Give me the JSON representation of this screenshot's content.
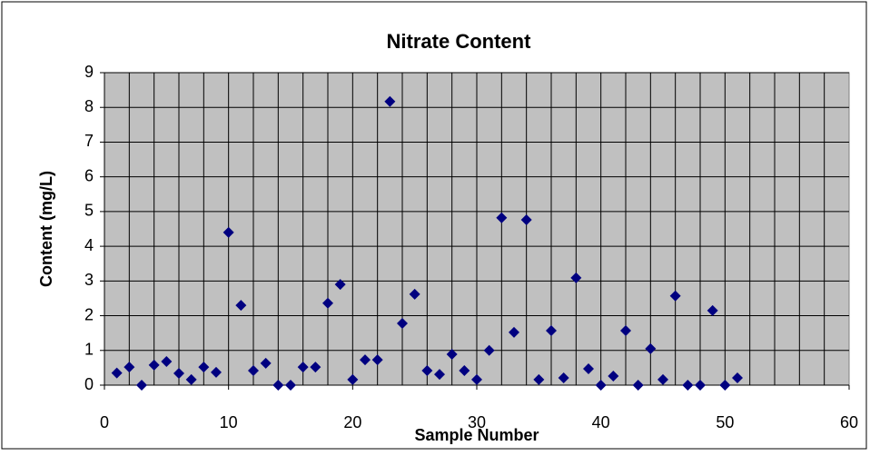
{
  "chart_data": {
    "type": "scatter",
    "title": "Nitrate Content",
    "x_label": "Sample Number",
    "y_label": "Content (mg/L)",
    "series": [
      {
        "name": "Nitrate",
        "color": "#000080",
        "x": [
          1,
          2,
          3,
          4,
          5,
          6,
          7,
          8,
          9,
          10,
          11,
          12,
          13,
          14,
          15,
          16,
          17,
          18,
          19,
          20,
          21,
          22,
          23,
          24,
          25,
          26,
          27,
          28,
          29,
          30,
          31,
          32,
          33,
          34,
          35,
          36,
          37,
          38,
          39,
          40,
          41,
          42,
          43,
          44,
          45,
          46,
          47,
          48,
          49,
          50,
          51
        ],
        "values": [
          0.35,
          0.52,
          0,
          0.58,
          0.68,
          0.34,
          0.16,
          0.52,
          0.37,
          4.4,
          2.3,
          0.42,
          0.63,
          0,
          0,
          0.52,
          0.52,
          2.36,
          2.9,
          0.16,
          0.73,
          0.73,
          8.17,
          1.78,
          2.62,
          0.42,
          0.31,
          0.89,
          0.42,
          0.16,
          1.0,
          4.82,
          1.52,
          4.76,
          0.16,
          1.57,
          0.21,
          3.09,
          0.47,
          0,
          0.26,
          1.57,
          0,
          1.05,
          0.16,
          2.57,
          0,
          0,
          2.15,
          0,
          0.21
        ]
      }
    ],
    "xlim": [
      0,
      60
    ],
    "xticks": [
      0,
      10,
      20,
      30,
      40,
      50,
      60
    ],
    "xgrid": [
      2,
      4,
      6,
      8,
      10,
      12,
      14,
      16,
      18,
      20,
      22,
      24,
      26,
      28,
      30,
      32,
      34,
      36,
      38,
      40,
      42,
      44,
      46,
      48,
      50,
      52,
      54,
      56,
      58
    ],
    "ylim": [
      0,
      9
    ],
    "yticks": [
      0,
      1,
      2,
      3,
      4,
      5,
      6,
      7,
      8,
      9
    ],
    "grid": true,
    "plot_background": "#c0c0c0"
  }
}
